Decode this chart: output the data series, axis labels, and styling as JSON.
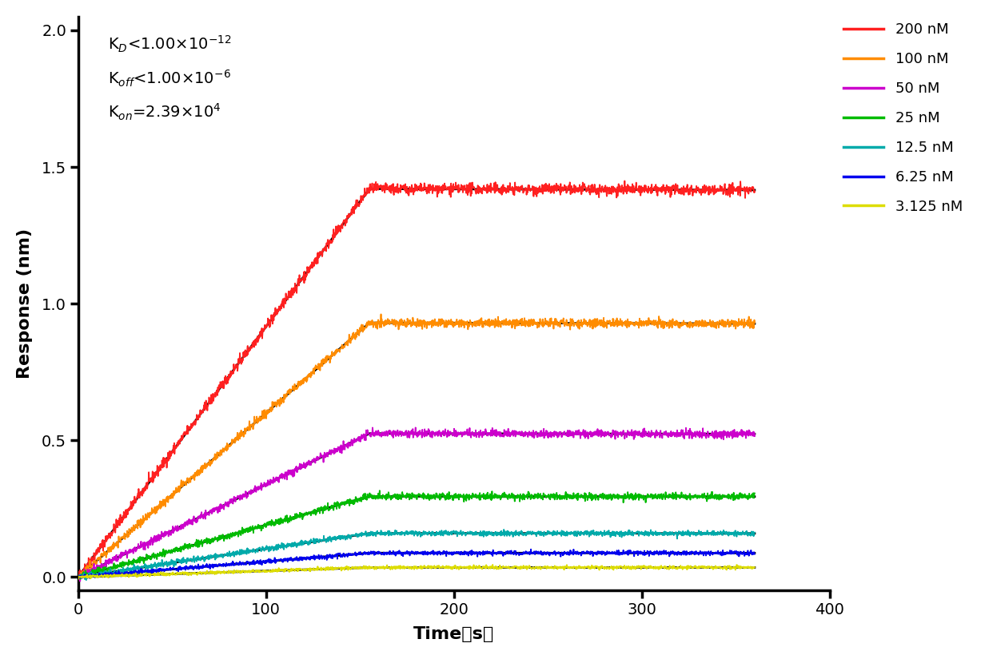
{
  "xlabel": "Time（s）",
  "ylabel": "Response (nm)",
  "xlim": [
    0,
    400
  ],
  "ylim": [
    -0.05,
    2.05
  ],
  "xticks": [
    0,
    100,
    200,
    300,
    400
  ],
  "yticks": [
    0.0,
    0.5,
    1.0,
    1.5,
    2.0
  ],
  "annotation_lines": [
    "K$_D$<1.00×10$^{-12}$",
    "K$_{off}$<1.00×10$^{-6}$",
    "K$_{on}$=2.39×10$^4$"
  ],
  "series": [
    {
      "label": "200 nM",
      "color": "#FF2020",
      "plateau": 1.42,
      "t_assoc_end": 155,
      "noise": 0.01
    },
    {
      "label": "100 nM",
      "color": "#FF8C00",
      "plateau": 0.93,
      "t_assoc_end": 155,
      "noise": 0.008
    },
    {
      "label": "50 nM",
      "color": "#CC00CC",
      "plateau": 0.525,
      "t_assoc_end": 155,
      "noise": 0.007
    },
    {
      "label": "25 nM",
      "color": "#00BB00",
      "plateau": 0.295,
      "t_assoc_end": 155,
      "noise": 0.006
    },
    {
      "label": "12.5 nM",
      "color": "#00AAAA",
      "plateau": 0.16,
      "t_assoc_end": 155,
      "noise": 0.005
    },
    {
      "label": "6.25 nM",
      "color": "#0000EE",
      "plateau": 0.088,
      "t_assoc_end": 155,
      "noise": 0.004
    },
    {
      "label": "3.125 nM",
      "color": "#DDDD00",
      "plateau": 0.035,
      "t_assoc_end": 155,
      "noise": 0.003
    }
  ],
  "fit_color": "#000000",
  "fit_linewidth": 2.0,
  "data_linewidth": 1.3,
  "background_color": "#FFFFFF",
  "legend_fontsize": 13,
  "axis_label_fontsize": 16,
  "tick_fontsize": 14,
  "annotation_fontsize": 14
}
